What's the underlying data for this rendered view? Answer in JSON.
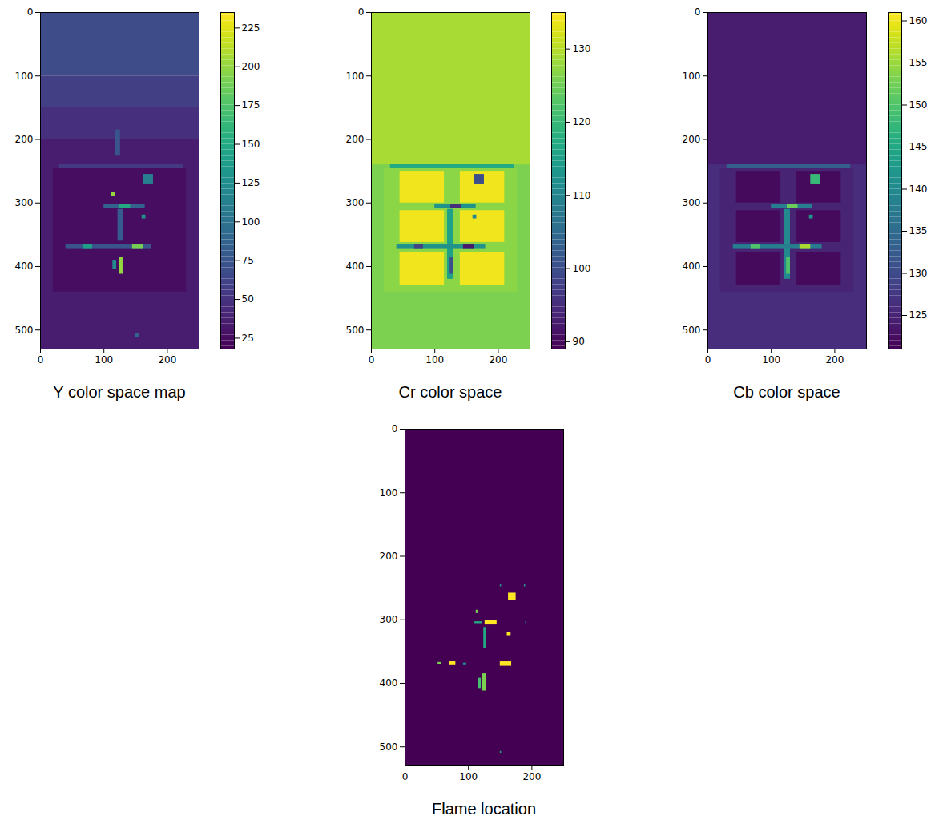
{
  "chart_data": [
    {
      "type": "heatmap",
      "caption": "Y color space map",
      "color": "viridis",
      "xlim": [
        0,
        250
      ],
      "ylim": [
        530,
        0
      ],
      "xticks": [
        0,
        100,
        200
      ],
      "yticks": [
        0,
        100,
        200,
        300,
        400,
        500
      ],
      "color_range": [
        18,
        235
      ],
      "color_ticks": [
        25,
        50,
        75,
        100,
        125,
        150,
        175,
        200,
        225
      ],
      "cells": [
        {
          "x": [
            0,
            250
          ],
          "y": [
            0,
            100
          ],
          "value": 68
        },
        {
          "x": [
            0,
            250
          ],
          "y": [
            100,
            150
          ],
          "value": 58
        },
        {
          "x": [
            0,
            250
          ],
          "y": [
            150,
            200
          ],
          "value": 48
        },
        {
          "x": [
            0,
            250
          ],
          "y": [
            200,
            530
          ],
          "value": 35
        },
        {
          "x": [
            20,
            230
          ],
          "y": [
            245,
            440
          ],
          "value": 25
        },
        {
          "x": [
            118,
            126
          ],
          "y": [
            185,
            225
          ],
          "value": 75
        },
        {
          "x": [
            30,
            225
          ],
          "y": [
            239,
            245
          ],
          "value": 55
        },
        {
          "x": [
            162,
            178
          ],
          "y": [
            255,
            270
          ],
          "value": 110
        },
        {
          "x": [
            100,
            165
          ],
          "y": [
            302,
            308
          ],
          "value": 85
        },
        {
          "x": [
            125,
            142
          ],
          "y": [
            302,
            308
          ],
          "value": 150
        },
        {
          "x": [
            112,
            118
          ],
          "y": [
            283,
            290
          ],
          "value": 200
        },
        {
          "x": [
            160,
            166
          ],
          "y": [
            319,
            325
          ],
          "value": 130
        },
        {
          "x": [
            122,
            130
          ],
          "y": [
            310,
            360
          ],
          "value": 80
        },
        {
          "x": [
            40,
            175
          ],
          "y": [
            366,
            373
          ],
          "value": 75
        },
        {
          "x": [
            68,
            82
          ],
          "y": [
            366,
            373
          ],
          "value": 140
        },
        {
          "x": [
            145,
            162
          ],
          "y": [
            366,
            373
          ],
          "value": 190
        },
        {
          "x": [
            124,
            130
          ],
          "y": [
            385,
            412
          ],
          "value": 200
        },
        {
          "x": [
            114,
            120
          ],
          "y": [
            390,
            405
          ],
          "value": 120
        },
        {
          "x": [
            150,
            156
          ],
          "y": [
            505,
            512
          ],
          "value": 90
        }
      ]
    },
    {
      "type": "heatmap",
      "caption": "Cr color space",
      "color": "viridis",
      "xlim": [
        0,
        250
      ],
      "ylim": [
        530,
        0
      ],
      "xticks": [
        0,
        100,
        200
      ],
      "yticks": [
        0,
        100,
        200,
        300,
        400,
        500
      ],
      "color_range": [
        89,
        135
      ],
      "color_ticks": [
        90,
        100,
        110,
        120,
        130
      ],
      "cells": [
        {
          "x": [
            0,
            250
          ],
          "y": [
            0,
            530
          ],
          "value": 126
        },
        {
          "x": [
            0,
            250
          ],
          "y": [
            0,
            240
          ],
          "value": 129
        },
        {
          "x": [
            20,
            230
          ],
          "y": [
            245,
            440
          ],
          "value": 127
        },
        {
          "x": [
            45,
            115
          ],
          "y": [
            250,
            300
          ],
          "value": 134
        },
        {
          "x": [
            140,
            210
          ],
          "y": [
            250,
            300
          ],
          "value": 134
        },
        {
          "x": [
            45,
            115
          ],
          "y": [
            312,
            362
          ],
          "value": 134
        },
        {
          "x": [
            140,
            210
          ],
          "y": [
            312,
            362
          ],
          "value": 134
        },
        {
          "x": [
            45,
            115
          ],
          "y": [
            378,
            430
          ],
          "value": 134
        },
        {
          "x": [
            140,
            210
          ],
          "y": [
            378,
            430
          ],
          "value": 134
        },
        {
          "x": [
            30,
            225
          ],
          "y": [
            239,
            245
          ],
          "value": 117
        },
        {
          "x": [
            162,
            178
          ],
          "y": [
            255,
            270
          ],
          "value": 100
        },
        {
          "x": [
            100,
            165
          ],
          "y": [
            302,
            308
          ],
          "value": 112
        },
        {
          "x": [
            125,
            142
          ],
          "y": [
            302,
            308
          ],
          "value": 95
        },
        {
          "x": [
            120,
            130
          ],
          "y": [
            310,
            420
          ],
          "value": 115
        },
        {
          "x": [
            40,
            180
          ],
          "y": [
            366,
            373
          ],
          "value": 112
        },
        {
          "x": [
            68,
            82
          ],
          "y": [
            366,
            373
          ],
          "value": 98
        },
        {
          "x": [
            145,
            162
          ],
          "y": [
            366,
            373
          ],
          "value": 92
        },
        {
          "x": [
            124,
            130
          ],
          "y": [
            385,
            412
          ],
          "value": 100
        },
        {
          "x": [
            160,
            166
          ],
          "y": [
            319,
            325
          ],
          "value": 110
        }
      ]
    },
    {
      "type": "heatmap",
      "caption": "Cb color space",
      "color": "viridis",
      "xlim": [
        0,
        250
      ],
      "ylim": [
        530,
        0
      ],
      "xticks": [
        0,
        100,
        200
      ],
      "yticks": [
        0,
        100,
        200,
        300,
        400,
        500
      ],
      "color_range": [
        121,
        161
      ],
      "color_ticks": [
        125,
        130,
        135,
        140,
        145,
        150,
        155,
        160
      ],
      "cells": [
        {
          "x": [
            0,
            250
          ],
          "y": [
            0,
            530
          ],
          "value": 126
        },
        {
          "x": [
            0,
            250
          ],
          "y": [
            0,
            240
          ],
          "value": 124
        },
        {
          "x": [
            20,
            230
          ],
          "y": [
            245,
            440
          ],
          "value": 125
        },
        {
          "x": [
            45,
            115
          ],
          "y": [
            250,
            300
          ],
          "value": 122
        },
        {
          "x": [
            140,
            210
          ],
          "y": [
            250,
            300
          ],
          "value": 122
        },
        {
          "x": [
            45,
            115
          ],
          "y": [
            312,
            362
          ],
          "value": 122
        },
        {
          "x": [
            140,
            210
          ],
          "y": [
            312,
            362
          ],
          "value": 122
        },
        {
          "x": [
            45,
            115
          ],
          "y": [
            378,
            430
          ],
          "value": 122
        },
        {
          "x": [
            140,
            210
          ],
          "y": [
            378,
            430
          ],
          "value": 122
        },
        {
          "x": [
            30,
            225
          ],
          "y": [
            239,
            245
          ],
          "value": 133
        },
        {
          "x": [
            162,
            178
          ],
          "y": [
            255,
            270
          ],
          "value": 148
        },
        {
          "x": [
            100,
            165
          ],
          "y": [
            302,
            308
          ],
          "value": 138
        },
        {
          "x": [
            125,
            142
          ],
          "y": [
            302,
            308
          ],
          "value": 152
        },
        {
          "x": [
            120,
            130
          ],
          "y": [
            310,
            420
          ],
          "value": 140
        },
        {
          "x": [
            40,
            180
          ],
          "y": [
            366,
            373
          ],
          "value": 138
        },
        {
          "x": [
            68,
            82
          ],
          "y": [
            366,
            373
          ],
          "value": 150
        },
        {
          "x": [
            145,
            162
          ],
          "y": [
            366,
            373
          ],
          "value": 156
        },
        {
          "x": [
            124,
            130
          ],
          "y": [
            385,
            412
          ],
          "value": 150
        },
        {
          "x": [
            160,
            166
          ],
          "y": [
            319,
            325
          ],
          "value": 142
        }
      ]
    },
    {
      "type": "heatmap",
      "caption": "Flame location",
      "color": "viridis",
      "xlim": [
        0,
        250
      ],
      "ylim": [
        530,
        0
      ],
      "xticks": [
        0,
        100,
        200
      ],
      "yticks": [
        0,
        100,
        200,
        300,
        400,
        500
      ],
      "color_range": [
        0,
        1
      ],
      "cells": [
        {
          "x": [
            0,
            250
          ],
          "y": [
            0,
            530
          ],
          "value": 0
        },
        {
          "x": [
            163,
            175
          ],
          "y": [
            258,
            270
          ],
          "value": 1
        },
        {
          "x": [
            126,
            145
          ],
          "y": [
            301,
            308
          ],
          "value": 1
        },
        {
          "x": [
            110,
            122
          ],
          "y": [
            303,
            306
          ],
          "value": 0.6
        },
        {
          "x": [
            112,
            116
          ],
          "y": [
            285,
            290
          ],
          "value": 0.8
        },
        {
          "x": [
            161,
            167
          ],
          "y": [
            320,
            325
          ],
          "value": 1
        },
        {
          "x": [
            124,
            128
          ],
          "y": [
            312,
            345
          ],
          "value": 0.6
        },
        {
          "x": [
            150,
            168
          ],
          "y": [
            366,
            373
          ],
          "value": 1
        },
        {
          "x": [
            70,
            80
          ],
          "y": [
            366,
            372
          ],
          "value": 1
        },
        {
          "x": [
            52,
            57
          ],
          "y": [
            367,
            371
          ],
          "value": 0.8
        },
        {
          "x": [
            92,
            97
          ],
          "y": [
            368,
            372
          ],
          "value": 0.5
        },
        {
          "x": [
            122,
            128
          ],
          "y": [
            385,
            412
          ],
          "value": 0.8
        },
        {
          "x": [
            116,
            120
          ],
          "y": [
            392,
            408
          ],
          "value": 0.7
        },
        {
          "x": [
            150,
            152
          ],
          "y": [
            507,
            511
          ],
          "value": 0.6
        },
        {
          "x": [
            150,
            152
          ],
          "y": [
            244,
            248
          ],
          "value": 0.5
        },
        {
          "x": [
            188,
            190
          ],
          "y": [
            244,
            248
          ],
          "value": 0.5
        },
        {
          "x": [
            190,
            192
          ],
          "y": [
            303,
            306
          ],
          "value": 0.5
        }
      ]
    }
  ]
}
